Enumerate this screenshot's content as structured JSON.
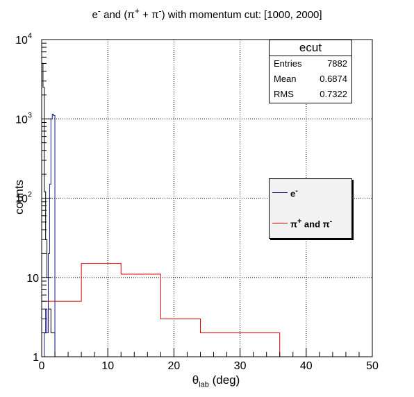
{
  "title_parts": {
    "pre": "e",
    "pre_sup": "-",
    "mid": " and (π",
    "mid_sup": "+",
    "mid2": " + π",
    "mid2_sup": "-",
    "post": ") with momentum cut: [1000, 2000]"
  },
  "stats": {
    "name": "ecut",
    "rows": [
      {
        "label": "Entries",
        "value": "7882"
      },
      {
        "label": "Mean",
        "value": "0.6874"
      },
      {
        "label": "RMS",
        "value": "0.7322"
      }
    ]
  },
  "legend": {
    "electron": {
      "base": "e",
      "sup": "-"
    },
    "pion": {
      "p1": "π",
      "s1": "+",
      "mid": " and π",
      "s2": "-"
    }
  },
  "axes": {
    "ylabel": "counts",
    "xlabel_base": "θ",
    "xlabel_sub": "lab",
    "xlabel_rest": " (deg)"
  },
  "colors": {
    "electron": "#1a1a8c",
    "pion": "#e00000",
    "black": "#000000",
    "grid": "#000000"
  },
  "chart_data": {
    "type": "histogram",
    "x_range": [
      0,
      50
    ],
    "y_range": [
      1,
      10000
    ],
    "y_scale": "log",
    "grid": true,
    "x_ticks": [
      0,
      10,
      20,
      30,
      40,
      50
    ],
    "y_tick_labels": [
      {
        "v": 1,
        "base": "1",
        "exp": ""
      },
      {
        "v": 10,
        "base": "10",
        "exp": ""
      },
      {
        "v": 100,
        "base": "10",
        "exp": "2"
      },
      {
        "v": 1000,
        "base": "10",
        "exp": "3"
      },
      {
        "v": 10000,
        "base": "10",
        "exp": "4"
      }
    ],
    "series": [
      {
        "name": "total",
        "color": "black",
        "steps": [
          {
            "x0": 0.0,
            "x1": 0.2,
            "y": 5000
          },
          {
            "x0": 0.2,
            "x1": 0.4,
            "y": 2500
          },
          {
            "x0": 0.4,
            "x1": 0.6,
            "y": 120
          },
          {
            "x0": 0.6,
            "x1": 0.8,
            "y": 30
          },
          {
            "x0": 0.8,
            "x1": 1.0,
            "y": 10
          },
          {
            "x0": 1.0,
            "x1": 1.2,
            "y": 4
          },
          {
            "x0": 1.2,
            "x1": 1.4,
            "y": 4
          },
          {
            "x0": 1.4,
            "x1": 1.6,
            "y": 2
          },
          {
            "x0": 1.6,
            "x1": 1.8,
            "y": 2
          },
          {
            "x0": 1.8,
            "x1": 2.0,
            "y": 2
          }
        ]
      },
      {
        "name": "e-",
        "color": "electron",
        "steps": [
          {
            "x0": 0.0,
            "x1": 0.4,
            "y": 1
          },
          {
            "x0": 0.4,
            "x1": 0.6,
            "y": 2
          },
          {
            "x0": 0.6,
            "x1": 0.8,
            "y": 4
          },
          {
            "x0": 0.8,
            "x1": 1.0,
            "y": 2
          },
          {
            "x0": 1.0,
            "x1": 1.2,
            "y": 20
          },
          {
            "x0": 1.2,
            "x1": 1.4,
            "y": 150
          },
          {
            "x0": 1.4,
            "x1": 1.6,
            "y": 1000
          },
          {
            "x0": 1.6,
            "x1": 1.8,
            "y": 1150
          },
          {
            "x0": 1.8,
            "x1": 2.0,
            "y": 1100
          },
          {
            "x0": 2.0,
            "x1": 2.2,
            "y": 1
          }
        ]
      },
      {
        "name": "π+ and π-",
        "color": "pion",
        "steps": [
          {
            "x0": 0,
            "x1": 6,
            "y": 5
          },
          {
            "x0": 6,
            "x1": 12,
            "y": 15
          },
          {
            "x0": 12,
            "x1": 18,
            "y": 11
          },
          {
            "x0": 18,
            "x1": 24,
            "y": 3
          },
          {
            "x0": 24,
            "x1": 36,
            "y": 2
          },
          {
            "x0": 36,
            "x1": 50,
            "y": 1
          }
        ]
      }
    ]
  }
}
